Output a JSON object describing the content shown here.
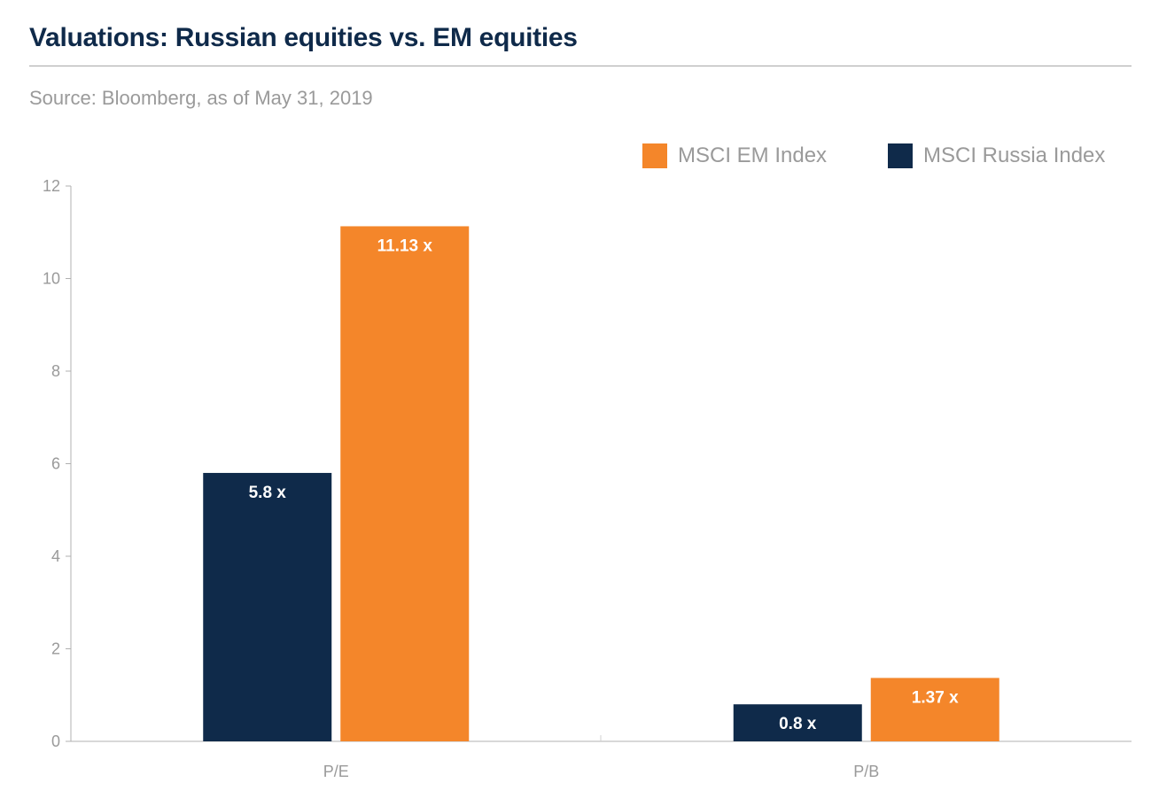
{
  "header": {
    "title": "Valuations: Russian equities vs. EM equities",
    "source": "Source: Bloomberg, as of May 31, 2019"
  },
  "colors": {
    "em": "#f4862a",
    "russia": "#0f2a4a"
  },
  "chart_data": {
    "type": "bar",
    "title": "Valuations: Russian equities vs. EM equities",
    "xlabel": "",
    "ylabel": "",
    "categories": [
      "P/E",
      "P/B"
    ],
    "ylim": [
      0,
      12
    ],
    "yticks": [
      "0",
      "2",
      "4",
      "6",
      "8",
      "10",
      "12"
    ],
    "grid": false,
    "legend_position": "top-right",
    "series": [
      {
        "name": "MSCI Russia Index",
        "values": [
          5.8,
          0.8
        ],
        "labels": [
          "5.8 x",
          "0.8 x"
        ],
        "color": "#0f2a4a"
      },
      {
        "name": "MSCI EM Index",
        "values": [
          11.13,
          1.37
        ],
        "labels": [
          "11.13 x",
          "1.37 x"
        ],
        "color": "#f4862a"
      }
    ]
  }
}
